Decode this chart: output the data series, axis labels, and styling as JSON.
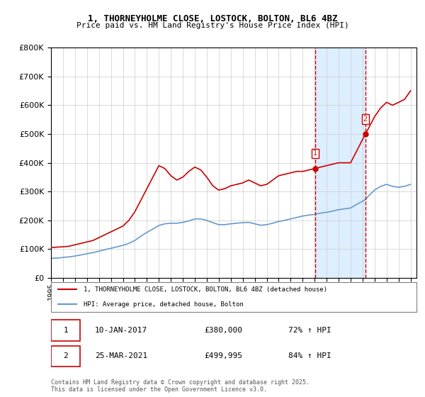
{
  "title": "1, THORNEYHOLME CLOSE, LOSTOCK, BOLTON, BL6 4BZ",
  "subtitle": "Price paid vs. HM Land Registry's House Price Index (HPI)",
  "ylabel": "",
  "xlabel": "",
  "ylim": [
    0,
    800000
  ],
  "xlim_start": 1995.0,
  "xlim_end": 2025.5,
  "background_color": "#ffffff",
  "grid_color": "#cccccc",
  "legend1_label": "1, THORNEYHOLME CLOSE, LOSTOCK, BOLTON, BL6 4BZ (detached house)",
  "legend2_label": "HPI: Average price, detached house, Bolton",
  "marker1_date": "10-JAN-2017",
  "marker1_price": "£380,000",
  "marker1_hpi": "72% ↑ HPI",
  "marker1_year": 2017.03,
  "marker2_date": "25-MAR-2021",
  "marker2_price": "£499,995",
  "marker2_hpi": "84% ↑ HPI",
  "marker2_year": 2021.23,
  "shade_start": 2017.03,
  "shade_end": 2021.23,
  "footer": "Contains HM Land Registry data © Crown copyright and database right 2025.\nThis data is licensed under the Open Government Licence v3.0.",
  "red_line_color": "#cc0000",
  "blue_line_color": "#6699cc",
  "shade_color": "#ddeeff",
  "marker_color": "#cc0000",
  "red_prices_x": [
    1995.0,
    1995.5,
    1996.0,
    1996.5,
    1997.0,
    1997.5,
    1998.0,
    1998.5,
    1999.0,
    1999.5,
    2000.0,
    2000.5,
    2001.0,
    2001.5,
    2002.0,
    2002.5,
    2003.0,
    2003.5,
    2004.0,
    2004.5,
    2005.0,
    2005.5,
    2006.0,
    2006.5,
    2007.0,
    2007.5,
    2008.0,
    2008.5,
    2009.0,
    2009.5,
    2010.0,
    2010.5,
    2011.0,
    2011.5,
    2012.0,
    2012.5,
    2013.0,
    2013.5,
    2014.0,
    2014.5,
    2015.0,
    2015.5,
    2016.0,
    2016.5,
    2017.03,
    2017.5,
    2018.0,
    2018.5,
    2019.0,
    2019.5,
    2020.0,
    2020.5,
    2021.23,
    2021.5,
    2022.0,
    2022.5,
    2023.0,
    2023.5,
    2024.0,
    2024.5,
    2025.0
  ],
  "red_prices_y": [
    105000,
    107000,
    108000,
    110000,
    115000,
    120000,
    125000,
    130000,
    140000,
    150000,
    160000,
    170000,
    180000,
    200000,
    230000,
    270000,
    310000,
    350000,
    390000,
    380000,
    355000,
    340000,
    350000,
    370000,
    385000,
    375000,
    350000,
    320000,
    305000,
    310000,
    320000,
    325000,
    330000,
    340000,
    330000,
    320000,
    325000,
    340000,
    355000,
    360000,
    365000,
    370000,
    370000,
    375000,
    380000,
    385000,
    390000,
    395000,
    400000,
    400000,
    400000,
    440000,
    499995,
    520000,
    560000,
    590000,
    610000,
    600000,
    610000,
    620000,
    650000
  ],
  "blue_prices_x": [
    1995.0,
    1995.5,
    1996.0,
    1996.5,
    1997.0,
    1997.5,
    1998.0,
    1998.5,
    1999.0,
    1999.5,
    2000.0,
    2000.5,
    2001.0,
    2001.5,
    2002.0,
    2002.5,
    2003.0,
    2003.5,
    2004.0,
    2004.5,
    2005.0,
    2005.5,
    2006.0,
    2006.5,
    2007.0,
    2007.5,
    2008.0,
    2008.5,
    2009.0,
    2009.5,
    2010.0,
    2010.5,
    2011.0,
    2011.5,
    2012.0,
    2012.5,
    2013.0,
    2013.5,
    2014.0,
    2014.5,
    2015.0,
    2015.5,
    2016.0,
    2016.5,
    2017.03,
    2017.5,
    2018.0,
    2018.5,
    2019.0,
    2019.5,
    2020.0,
    2020.5,
    2021.23,
    2021.5,
    2022.0,
    2022.5,
    2023.0,
    2023.5,
    2024.0,
    2024.5,
    2025.0
  ],
  "blue_prices_y": [
    68000,
    69000,
    71000,
    73000,
    76000,
    80000,
    84000,
    88000,
    93000,
    98000,
    103000,
    108000,
    113000,
    120000,
    130000,
    145000,
    158000,
    170000,
    182000,
    188000,
    190000,
    190000,
    193000,
    198000,
    205000,
    205000,
    200000,
    192000,
    185000,
    185000,
    188000,
    190000,
    192000,
    193000,
    188000,
    183000,
    185000,
    190000,
    196000,
    200000,
    205000,
    210000,
    215000,
    218000,
    221000,
    225000,
    228000,
    232000,
    237000,
    240000,
    243000,
    255000,
    272000,
    285000,
    305000,
    318000,
    325000,
    318000,
    315000,
    318000,
    325000
  ]
}
